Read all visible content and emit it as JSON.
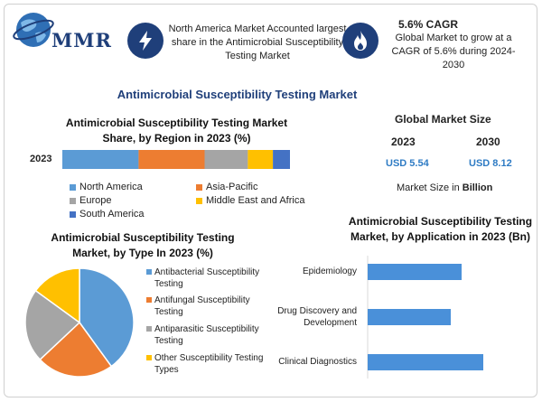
{
  "header": {
    "logo_text": "MMR",
    "banner_text": "North America Market Accounted largest share in the Antimicrobial Susceptibility Testing Market",
    "cagr_title": "5.6% CAGR",
    "cagr_text": "Global Market to grow at a CAGR of 5.6% during 2024-2030"
  },
  "main_title": "Antimicrobial Susceptibility Testing Market",
  "global": {
    "title": "Global Market Size",
    "year1": "2023",
    "year2": "2030",
    "value1": "USD 5.54",
    "value2": "USD 8.12",
    "note_prefix": "Market Size in ",
    "note_unit": "Billion"
  },
  "colors": {
    "north_america": "#5b9bd5",
    "asia_pacific": "#ed7d31",
    "europe": "#a5a5a5",
    "middle_east_africa": "#ffc000",
    "south_america": "#4472c4",
    "app_bar": "#4a90d9",
    "brand": "#1f3f7a"
  },
  "chart_data": [
    {
      "type": "bar",
      "orientation": "horizontal-stacked",
      "title": "Antimicrobial Susceptibility Testing Market Share, by Region in 2023 (%)",
      "categories": [
        "2023"
      ],
      "series": [
        {
          "name": "North America",
          "values": [
            33.5
          ]
        },
        {
          "name": "Asia-Pacific",
          "values": [
            29
          ]
        },
        {
          "name": "Europe",
          "values": [
            19
          ]
        },
        {
          "name": "Middle East and Africa",
          "values": [
            11
          ]
        },
        {
          "name": "South America",
          "values": [
            7.5
          ]
        }
      ],
      "legend": "bottom"
    },
    {
      "type": "pie",
      "title": "Antimicrobial Susceptibility Testing Market, by Type In 2023 (%)",
      "labels": [
        "Antibacterial Susceptibility Testing",
        "Antifungal Susceptibility Testing",
        "Antiparasitic Susceptibility Testing",
        "Other Susceptibility Testing Types"
      ],
      "values": [
        40,
        23,
        22,
        15
      ],
      "legend": "right"
    },
    {
      "type": "bar",
      "orientation": "horizontal",
      "title": "Antimicrobial Susceptibility Testing Market, by Application in 2023 (Bn)",
      "categories": [
        "Epidemiology",
        "Drug Discovery and Development",
        "Clinical Diagnostics"
      ],
      "values": [
        1.3,
        1.15,
        1.6
      ],
      "xlim": [
        0,
        2
      ]
    }
  ]
}
